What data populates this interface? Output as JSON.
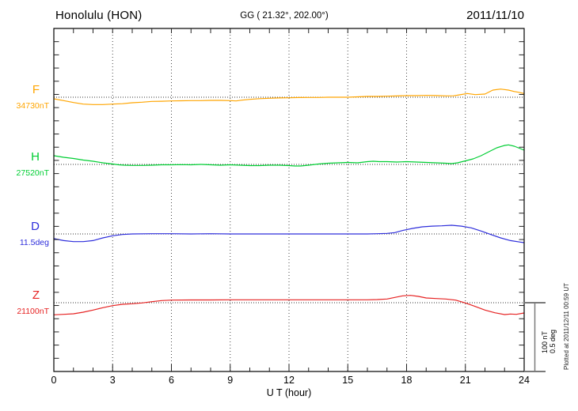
{
  "header": {
    "station": "Honolulu (HON)",
    "coordinates": "GG ( 21.32°, 202.00°)",
    "date": "2011/11/10"
  },
  "x_axis": {
    "label": "U T (hour)"
  },
  "scale_bar": {
    "line1": "100 nT",
    "line2": "0.5 deg"
  },
  "footer": {
    "plotted_at": "Plotted at 2011/12/11 00:59 UT"
  },
  "colors": {
    "frame": "#000000",
    "grid": "#444444",
    "scale_bar": "#7a7a7a"
  },
  "chart_data": {
    "type": "line",
    "title": "Honolulu (HON) magnetogram 2011/11/10",
    "xlabel": "U T (hour)",
    "x_range": [
      0,
      24
    ],
    "x_ticks": [
      0,
      3,
      6,
      9,
      12,
      15,
      18,
      21,
      24
    ],
    "grid": "dotted vertical lines every 3 h; dotted horizontal baseline at each component reference value",
    "legend_position": "left margin, one colored label per component",
    "scale": {
      "nT_per_division": 100,
      "deg_per_division": 0.5
    },
    "series": [
      {
        "id": "F",
        "label": "F",
        "ref_label": "34730nT",
        "ref_value": 34730,
        "unit": "nT",
        "color": "#FFA500",
        "points": [
          [
            0,
            -2.3
          ],
          [
            0.5,
            -4.9
          ],
          [
            1,
            -7.7
          ],
          [
            1.5,
            -10
          ],
          [
            2,
            -10.7
          ],
          [
            2.5,
            -10.7
          ],
          [
            3,
            -10
          ],
          [
            3.5,
            -9.4
          ],
          [
            4,
            -8
          ],
          [
            4.5,
            -7.2
          ],
          [
            5,
            -6.1
          ],
          [
            5.5,
            -5.9
          ],
          [
            6,
            -5.4
          ],
          [
            6.5,
            -5.2
          ],
          [
            7,
            -4.9
          ],
          [
            7.5,
            -4.9
          ],
          [
            8,
            -4.6
          ],
          [
            8.5,
            -4.6
          ],
          [
            9,
            -4.9
          ],
          [
            9.3,
            -5.4
          ],
          [
            9.6,
            -4.3
          ],
          [
            10,
            -3.1
          ],
          [
            10.5,
            -2.1
          ],
          [
            11,
            -1.5
          ],
          [
            11.5,
            -1
          ],
          [
            12,
            -0.8
          ],
          [
            12.5,
            -0.5
          ],
          [
            13,
            -0.3
          ],
          [
            13.5,
            -0.3
          ],
          [
            14,
            0
          ],
          [
            14.5,
            0
          ],
          [
            15,
            0
          ],
          [
            15.5,
            0.6
          ],
          [
            16,
            1.1
          ],
          [
            16.5,
            1.1
          ],
          [
            17,
            1.5
          ],
          [
            17.5,
            1.8
          ],
          [
            18,
            2.3
          ],
          [
            18.5,
            2.3
          ],
          [
            19,
            2.6
          ],
          [
            19.5,
            2.4
          ],
          [
            20,
            1.9
          ],
          [
            20.4,
            2.1
          ],
          [
            20.7,
            3.4
          ],
          [
            21.1,
            5.4
          ],
          [
            21.5,
            3.8
          ],
          [
            22,
            4.6
          ],
          [
            22.4,
            10.3
          ],
          [
            22.8,
            11.8
          ],
          [
            23.2,
            10.3
          ],
          [
            23.5,
            8.3
          ],
          [
            23.7,
            7.2
          ],
          [
            24,
            5.4
          ]
        ]
      },
      {
        "id": "H",
        "label": "H",
        "ref_label": "27520nT",
        "ref_value": 27520,
        "unit": "nT",
        "color": "#00CE33",
        "points": [
          [
            0,
            12.6
          ],
          [
            0.5,
            10.3
          ],
          [
            1,
            8.6
          ],
          [
            1.5,
            6.3
          ],
          [
            2,
            4.6
          ],
          [
            2.5,
            2.3
          ],
          [
            3,
            0.6
          ],
          [
            3.3,
            -0.6
          ],
          [
            3.6,
            -1.1
          ],
          [
            4,
            -1.5
          ],
          [
            4.5,
            -1.5
          ],
          [
            5,
            -1.1
          ],
          [
            5.5,
            -0.6
          ],
          [
            6,
            -0.6
          ],
          [
            6.5,
            -0.3
          ],
          [
            7,
            -0.6
          ],
          [
            7.5,
            0
          ],
          [
            8,
            -0.6
          ],
          [
            8.5,
            -1.1
          ],
          [
            9,
            -0.6
          ],
          [
            9.5,
            -1.1
          ],
          [
            10,
            -1.7
          ],
          [
            10.5,
            -1.7
          ],
          [
            11,
            -1.1
          ],
          [
            11.5,
            -1.1
          ],
          [
            12,
            -1.7
          ],
          [
            12.3,
            -2.3
          ],
          [
            12.6,
            -2.3
          ],
          [
            13,
            -1.1
          ],
          [
            13.5,
            0.6
          ],
          [
            14,
            1.7
          ],
          [
            14.5,
            2.3
          ],
          [
            15,
            2.9
          ],
          [
            15.5,
            2.3
          ],
          [
            16,
            4
          ],
          [
            16.3,
            4.6
          ],
          [
            16.6,
            4
          ],
          [
            17,
            4
          ],
          [
            17.5,
            3.4
          ],
          [
            18,
            4
          ],
          [
            18.5,
            3.4
          ],
          [
            19,
            2.9
          ],
          [
            19.5,
            2.3
          ],
          [
            20,
            1.7
          ],
          [
            20.3,
            1.1
          ],
          [
            20.6,
            2.3
          ],
          [
            21,
            5.2
          ],
          [
            21.4,
            8
          ],
          [
            21.8,
            12.6
          ],
          [
            22.2,
            18.4
          ],
          [
            22.6,
            24.1
          ],
          [
            23,
            27.6
          ],
          [
            23.2,
            28.4
          ],
          [
            23.5,
            26.4
          ],
          [
            23.8,
            23
          ],
          [
            24,
            20.7
          ]
        ]
      },
      {
        "id": "D",
        "label": "D",
        "ref_label": "11.5deg",
        "ref_value": 11.5,
        "unit": "deg",
        "color": "#2E2EDB",
        "points": [
          [
            0,
            -0.034
          ],
          [
            0.5,
            -0.048
          ],
          [
            1,
            -0.056
          ],
          [
            1.5,
            -0.056
          ],
          [
            2,
            -0.048
          ],
          [
            2.5,
            -0.029
          ],
          [
            3,
            -0.013
          ],
          [
            3.5,
            -0.004
          ],
          [
            4,
            0
          ],
          [
            5,
            0.002
          ],
          [
            6,
            0.002
          ],
          [
            7,
            0
          ],
          [
            8,
            0.002
          ],
          [
            9,
            0
          ],
          [
            10,
            0
          ],
          [
            11,
            0
          ],
          [
            12,
            0
          ],
          [
            13,
            0
          ],
          [
            14,
            0
          ],
          [
            15,
            0
          ],
          [
            16,
            0
          ],
          [
            16.5,
            0.002
          ],
          [
            17,
            0.004
          ],
          [
            17.4,
            0.01
          ],
          [
            17.8,
            0.025
          ],
          [
            18.3,
            0.04
          ],
          [
            18.8,
            0.052
          ],
          [
            19.3,
            0.057
          ],
          [
            19.8,
            0.059
          ],
          [
            20.3,
            0.063
          ],
          [
            20.8,
            0.057
          ],
          [
            21.3,
            0.044
          ],
          [
            21.8,
            0.021
          ],
          [
            22.3,
            -0.004
          ],
          [
            22.8,
            -0.029
          ],
          [
            23.3,
            -0.048
          ],
          [
            23.8,
            -0.059
          ],
          [
            24,
            -0.063
          ]
        ]
      },
      {
        "id": "Z",
        "label": "Z",
        "ref_label": "21100nT",
        "ref_value": 21100,
        "unit": "nT",
        "color": "#E62222",
        "points": [
          [
            0,
            -17.6
          ],
          [
            0.5,
            -16.9
          ],
          [
            1,
            -16.1
          ],
          [
            1.5,
            -13.8
          ],
          [
            2,
            -10.7
          ],
          [
            2.5,
            -7.2
          ],
          [
            3,
            -4.3
          ],
          [
            3.5,
            -2.3
          ],
          [
            4,
            -1.5
          ],
          [
            4.5,
            -0.3
          ],
          [
            5,
            1.5
          ],
          [
            5.5,
            3.1
          ],
          [
            6,
            3.8
          ],
          [
            7,
            4
          ],
          [
            8,
            4
          ],
          [
            9,
            4.3
          ],
          [
            10,
            4.3
          ],
          [
            11,
            4.3
          ],
          [
            12,
            4.3
          ],
          [
            13,
            4.3
          ],
          [
            14,
            4.3
          ],
          [
            15,
            4.3
          ],
          [
            16,
            4.3
          ],
          [
            16.5,
            4.6
          ],
          [
            17,
            5.4
          ],
          [
            17.4,
            7.7
          ],
          [
            17.8,
            10
          ],
          [
            18.2,
            10.7
          ],
          [
            18.6,
            9.2
          ],
          [
            19,
            6.9
          ],
          [
            19.5,
            6.1
          ],
          [
            20,
            5.4
          ],
          [
            20.5,
            3.8
          ],
          [
            21,
            -0.3
          ],
          [
            21.5,
            -5.4
          ],
          [
            22,
            -10.7
          ],
          [
            22.5,
            -14.6
          ],
          [
            23,
            -17.2
          ],
          [
            23.3,
            -16.4
          ],
          [
            23.6,
            -16.9
          ],
          [
            24,
            -14.9
          ]
        ]
      }
    ]
  }
}
